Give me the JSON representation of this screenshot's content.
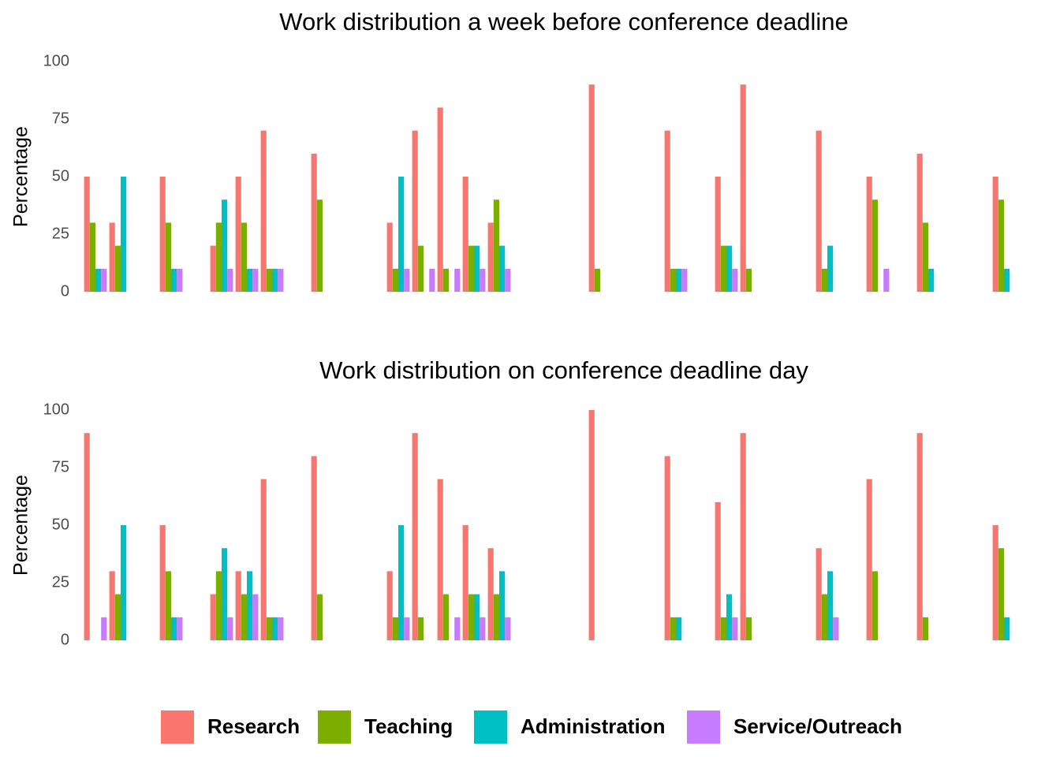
{
  "chart_data": [
    {
      "type": "bar",
      "title": "Work distribution a week before conference deadline",
      "y_label": "Percentage",
      "categories": [
        null,
        null,
        null,
        null,
        null,
        null,
        null,
        null,
        null,
        null,
        null,
        null,
        null,
        null,
        null,
        null,
        null,
        null,
        null,
        null,
        null,
        null,
        null,
        null,
        null,
        null,
        null,
        null,
        null,
        null,
        null,
        null,
        null,
        null,
        null,
        null,
        null
      ],
      "ylim": [
        0,
        100
      ],
      "yticks": [
        0,
        25,
        50,
        75,
        100
      ],
      "grid": false,
      "legend": "bottom",
      "series": [
        {
          "name": "Research",
          "color": "#f8766d",
          "values": [
            50,
            30,
            0,
            50,
            0,
            20,
            50,
            70,
            0,
            60,
            0,
            0,
            30,
            70,
            80,
            50,
            30,
            0,
            0,
            0,
            90,
            0,
            0,
            70,
            0,
            50,
            90,
            0,
            0,
            70,
            0,
            50,
            0,
            60,
            0,
            0,
            50
          ]
        },
        {
          "name": "Teaching",
          "color": "#7cae00",
          "values": [
            30,
            20,
            0,
            30,
            0,
            30,
            30,
            10,
            0,
            40,
            0,
            0,
            10,
            20,
            10,
            20,
            40,
            0,
            0,
            0,
            10,
            0,
            0,
            10,
            0,
            20,
            10,
            0,
            0,
            10,
            0,
            40,
            0,
            30,
            0,
            0,
            40
          ]
        },
        {
          "name": "Administration",
          "color": "#00bfc4",
          "values": [
            10,
            50,
            0,
            10,
            0,
            40,
            10,
            10,
            0,
            0,
            0,
            0,
            50,
            0,
            0,
            20,
            20,
            0,
            0,
            0,
            0,
            0,
            0,
            10,
            0,
            20,
            0,
            0,
            0,
            20,
            0,
            0,
            0,
            10,
            0,
            0,
            10
          ]
        },
        {
          "name": "Service/Outreach",
          "color": "#c77cff",
          "values": [
            10,
            0,
            0,
            10,
            0,
            10,
            10,
            10,
            0,
            0,
            0,
            0,
            10,
            10,
            10,
            10,
            10,
            0,
            0,
            0,
            0,
            0,
            0,
            10,
            0,
            10,
            0,
            0,
            0,
            0,
            0,
            10,
            0,
            0,
            0,
            0,
            0
          ]
        }
      ]
    },
    {
      "type": "bar",
      "title": "Work distribution on conference deadline day",
      "y_label": "Percentage",
      "categories": [
        null,
        null,
        null,
        null,
        null,
        null,
        null,
        null,
        null,
        null,
        null,
        null,
        null,
        null,
        null,
        null,
        null,
        null,
        null,
        null,
        null,
        null,
        null,
        null,
        null,
        null,
        null,
        null,
        null,
        null,
        null,
        null,
        null,
        null,
        null,
        null,
        null
      ],
      "ylim": [
        0,
        100
      ],
      "yticks": [
        0,
        25,
        50,
        75,
        100
      ],
      "grid": false,
      "series": [
        {
          "color": "#f8766d",
          "values": [
            90,
            30,
            0,
            50,
            0,
            20,
            30,
            70,
            0,
            80,
            0,
            0,
            30,
            90,
            70,
            50,
            40,
            0,
            0,
            0,
            100,
            0,
            0,
            80,
            0,
            60,
            90,
            0,
            0,
            40,
            0,
            70,
            0,
            90,
            0,
            0,
            50
          ]
        },
        {
          "color": "#7cae00",
          "values": [
            0,
            20,
            0,
            30,
            0,
            30,
            20,
            10,
            0,
            20,
            0,
            0,
            10,
            10,
            20,
            20,
            20,
            0,
            0,
            0,
            0,
            0,
            0,
            10,
            0,
            10,
            10,
            0,
            0,
            20,
            0,
            30,
            0,
            10,
            0,
            0,
            40
          ]
        },
        {
          "color": "#00bfc4",
          "values": [
            0,
            50,
            0,
            10,
            0,
            40,
            30,
            10,
            0,
            0,
            0,
            0,
            50,
            0,
            0,
            20,
            30,
            0,
            0,
            0,
            0,
            0,
            0,
            10,
            0,
            20,
            0,
            0,
            0,
            30,
            0,
            0,
            0,
            0,
            0,
            0,
            10
          ]
        },
        {
          "color": "#c77cff",
          "values": [
            10,
            0,
            0,
            10,
            0,
            10,
            20,
            10,
            0,
            0,
            0,
            0,
            10,
            0,
            10,
            10,
            10,
            0,
            0,
            0,
            0,
            0,
            0,
            0,
            0,
            10,
            0,
            0,
            0,
            10,
            0,
            0,
            0,
            0,
            0,
            0,
            0
          ]
        }
      ]
    }
  ]
}
